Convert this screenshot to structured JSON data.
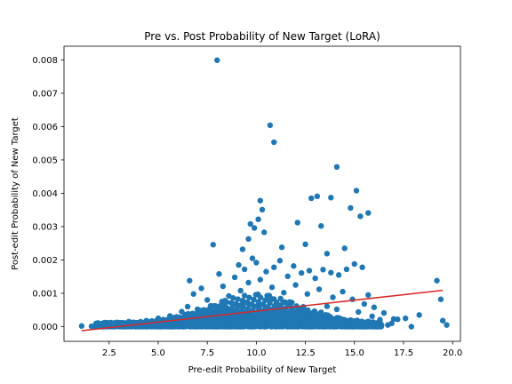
{
  "chart_data": {
    "type": "scatter",
    "title": "Pre vs. Post Probability of New Target (LoRA)",
    "xlabel": "Pre-edit Probability of New Target",
    "ylabel": "Post-edit Probability of New Target",
    "xlim": [
      0.2,
      20.4
    ],
    "ylim": [
      -0.00044,
      0.00841
    ],
    "xticks": [
      2.5,
      5.0,
      7.5,
      10.0,
      12.5,
      15.0,
      17.5,
      20.0
    ],
    "xtick_labels": [
      "2.5",
      "5.0",
      "7.5",
      "10.0",
      "12.5",
      "15.0",
      "17.5",
      "20.0"
    ],
    "yticks": [
      0.0,
      0.001,
      0.002,
      0.003,
      0.004,
      0.005,
      0.006,
      0.007,
      0.008
    ],
    "ytick_labels": [
      "0.000",
      "0.001",
      "0.002",
      "0.003",
      "0.004",
      "0.005",
      "0.006",
      "0.007",
      "0.008"
    ],
    "grid": false,
    "colors": {
      "points": "#1f77b4",
      "fit_line": "#d62728"
    },
    "fit_line": {
      "x": [
        1.1,
        19.5
      ],
      "y": [
        -0.00012,
        0.00109
      ]
    },
    "outliers": [
      {
        "x": 8.0,
        "y": 0.00799
      },
      {
        "x": 10.7,
        "y": 0.00604
      },
      {
        "x": 10.9,
        "y": 0.00553
      },
      {
        "x": 14.1,
        "y": 0.00479
      },
      {
        "x": 15.1,
        "y": 0.00408
      },
      {
        "x": 10.2,
        "y": 0.00378
      },
      {
        "x": 12.8,
        "y": 0.00385
      },
      {
        "x": 13.1,
        "y": 0.00391
      },
      {
        "x": 13.8,
        "y": 0.00387
      },
      {
        "x": 14.8,
        "y": 0.00356
      },
      {
        "x": 10.3,
        "y": 0.00351
      },
      {
        "x": 15.3,
        "y": 0.00331
      },
      {
        "x": 15.7,
        "y": 0.00341
      },
      {
        "x": 10.1,
        "y": 0.00322
      },
      {
        "x": 12.1,
        "y": 0.00312
      },
      {
        "x": 9.7,
        "y": 0.00308
      },
      {
        "x": 13.3,
        "y": 0.00302
      },
      {
        "x": 9.9,
        "y": 0.00296
      },
      {
        "x": 10.4,
        "y": 0.00283
      },
      {
        "x": 9.6,
        "y": 0.00263
      },
      {
        "x": 7.8,
        "y": 0.00246
      },
      {
        "x": 11.3,
        "y": 0.00238
      },
      {
        "x": 12.5,
        "y": 0.00247
      },
      {
        "x": 14.5,
        "y": 0.00235
      },
      {
        "x": 9.3,
        "y": 0.00232
      },
      {
        "x": 13.6,
        "y": 0.00219
      },
      {
        "x": 19.2,
        "y": 0.00138
      },
      {
        "x": 19.4,
        "y": 0.00082
      },
      {
        "x": 19.5,
        "y": 0.00018
      },
      {
        "x": 19.7,
        "y": 5e-05
      },
      {
        "x": 17.9,
        "y": 0.0
      },
      {
        "x": 18.3,
        "y": 0.00035
      },
      {
        "x": 17.6,
        "y": 0.00025
      },
      {
        "x": 17.2,
        "y": 0.00022
      },
      {
        "x": 16.9,
        "y": 0.0001
      },
      {
        "x": 16.3,
        "y": 0.00021
      },
      {
        "x": 1.1,
        "y": 2e-05
      },
      {
        "x": 1.6,
        "y": 1e-05
      }
    ],
    "bulk_points": [
      {
        "x": 1.9,
        "y": 0.0001
      },
      {
        "x": 2.1,
        "y": 5e-05
      },
      {
        "x": 2.3,
        "y": 9e-05
      },
      {
        "x": 2.6,
        "y": 0.00012
      },
      {
        "x": 2.9,
        "y": 2e-05
      },
      {
        "x": 3.2,
        "y": 8e-05
      },
      {
        "x": 3.5,
        "y": 0.00015
      },
      {
        "x": 3.8,
        "y": 4e-05
      },
      {
        "x": 4.1,
        "y": 0.00011
      },
      {
        "x": 4.4,
        "y": 0.00018
      },
      {
        "x": 4.7,
        "y": 6e-05
      },
      {
        "x": 5.0,
        "y": 0.00025
      },
      {
        "x": 5.3,
        "y": 0.00013
      },
      {
        "x": 5.6,
        "y": 0.00032
      },
      {
        "x": 5.9,
        "y": 8e-05
      },
      {
        "x": 6.2,
        "y": 0.00045
      },
      {
        "x": 6.5,
        "y": 0.0006
      },
      {
        "x": 6.6,
        "y": 0.00138
      },
      {
        "x": 6.8,
        "y": 0.00098
      },
      {
        "x": 7.0,
        "y": 0.00052
      },
      {
        "x": 7.2,
        "y": 0.00115
      },
      {
        "x": 7.5,
        "y": 0.0008
      },
      {
        "x": 7.8,
        "y": 0.00062
      },
      {
        "x": 8.1,
        "y": 0.00158
      },
      {
        "x": 8.3,
        "y": 0.00121
      },
      {
        "x": 8.6,
        "y": 0.00092
      },
      {
        "x": 8.9,
        "y": 0.00148
      },
      {
        "x": 9.1,
        "y": 0.00185
      },
      {
        "x": 9.4,
        "y": 0.00172
      },
      {
        "x": 9.8,
        "y": 0.00205
      },
      {
        "x": 10.0,
        "y": 0.00192
      },
      {
        "x": 10.5,
        "y": 0.00165
      },
      {
        "x": 10.9,
        "y": 0.00178
      },
      {
        "x": 11.2,
        "y": 0.00198
      },
      {
        "x": 11.6,
        "y": 0.00151
      },
      {
        "x": 11.9,
        "y": 0.00182
      },
      {
        "x": 12.3,
        "y": 0.00161
      },
      {
        "x": 12.7,
        "y": 0.00168
      },
      {
        "x": 13.0,
        "y": 0.00145
      },
      {
        "x": 13.4,
        "y": 0.00171
      },
      {
        "x": 13.8,
        "y": 0.00162
      },
      {
        "x": 14.2,
        "y": 0.00155
      },
      {
        "x": 14.6,
        "y": 0.00172
      },
      {
        "x": 15.0,
        "y": 0.00188
      },
      {
        "x": 15.4,
        "y": 0.00178
      },
      {
        "x": 15.7,
        "y": 0.00095
      },
      {
        "x": 16.0,
        "y": 0.00058
      },
      {
        "x": 16.2,
        "y": 0.00012
      },
      {
        "x": 9.2,
        "y": 0.00108
      },
      {
        "x": 9.6,
        "y": 0.00132
      },
      {
        "x": 10.2,
        "y": 0.00141
      },
      {
        "x": 10.8,
        "y": 0.00118
      },
      {
        "x": 11.4,
        "y": 0.00102
      },
      {
        "x": 12.0,
        "y": 0.00125
      },
      {
        "x": 12.6,
        "y": 0.00098
      },
      {
        "x": 13.2,
        "y": 0.00112
      },
      {
        "x": 13.9,
        "y": 0.00088
      },
      {
        "x": 14.4,
        "y": 0.00105
      },
      {
        "x": 14.9,
        "y": 0.00082
      },
      {
        "x": 15.5,
        "y": 0.00068
      },
      {
        "x": 8.4,
        "y": 0.00078
      },
      {
        "x": 8.8,
        "y": 0.00065
      },
      {
        "x": 9.0,
        "y": 0.00048
      },
      {
        "x": 9.5,
        "y": 0.00072
      },
      {
        "x": 10.6,
        "y": 0.00085
      },
      {
        "x": 11.1,
        "y": 0.00066
      },
      {
        "x": 11.7,
        "y": 0.00074
      },
      {
        "x": 12.4,
        "y": 0.00059
      },
      {
        "x": 13.6,
        "y": 0.00061
      },
      {
        "x": 14.1,
        "y": 0.00052
      },
      {
        "x": 15.2,
        "y": 0.00044
      },
      {
        "x": 15.9,
        "y": 0.00031
      },
      {
        "x": 16.5,
        "y": 0.00041
      },
      {
        "x": 16.7,
        "y": 5e-05
      },
      {
        "x": 17.0,
        "y": 0.00023
      }
    ]
  }
}
